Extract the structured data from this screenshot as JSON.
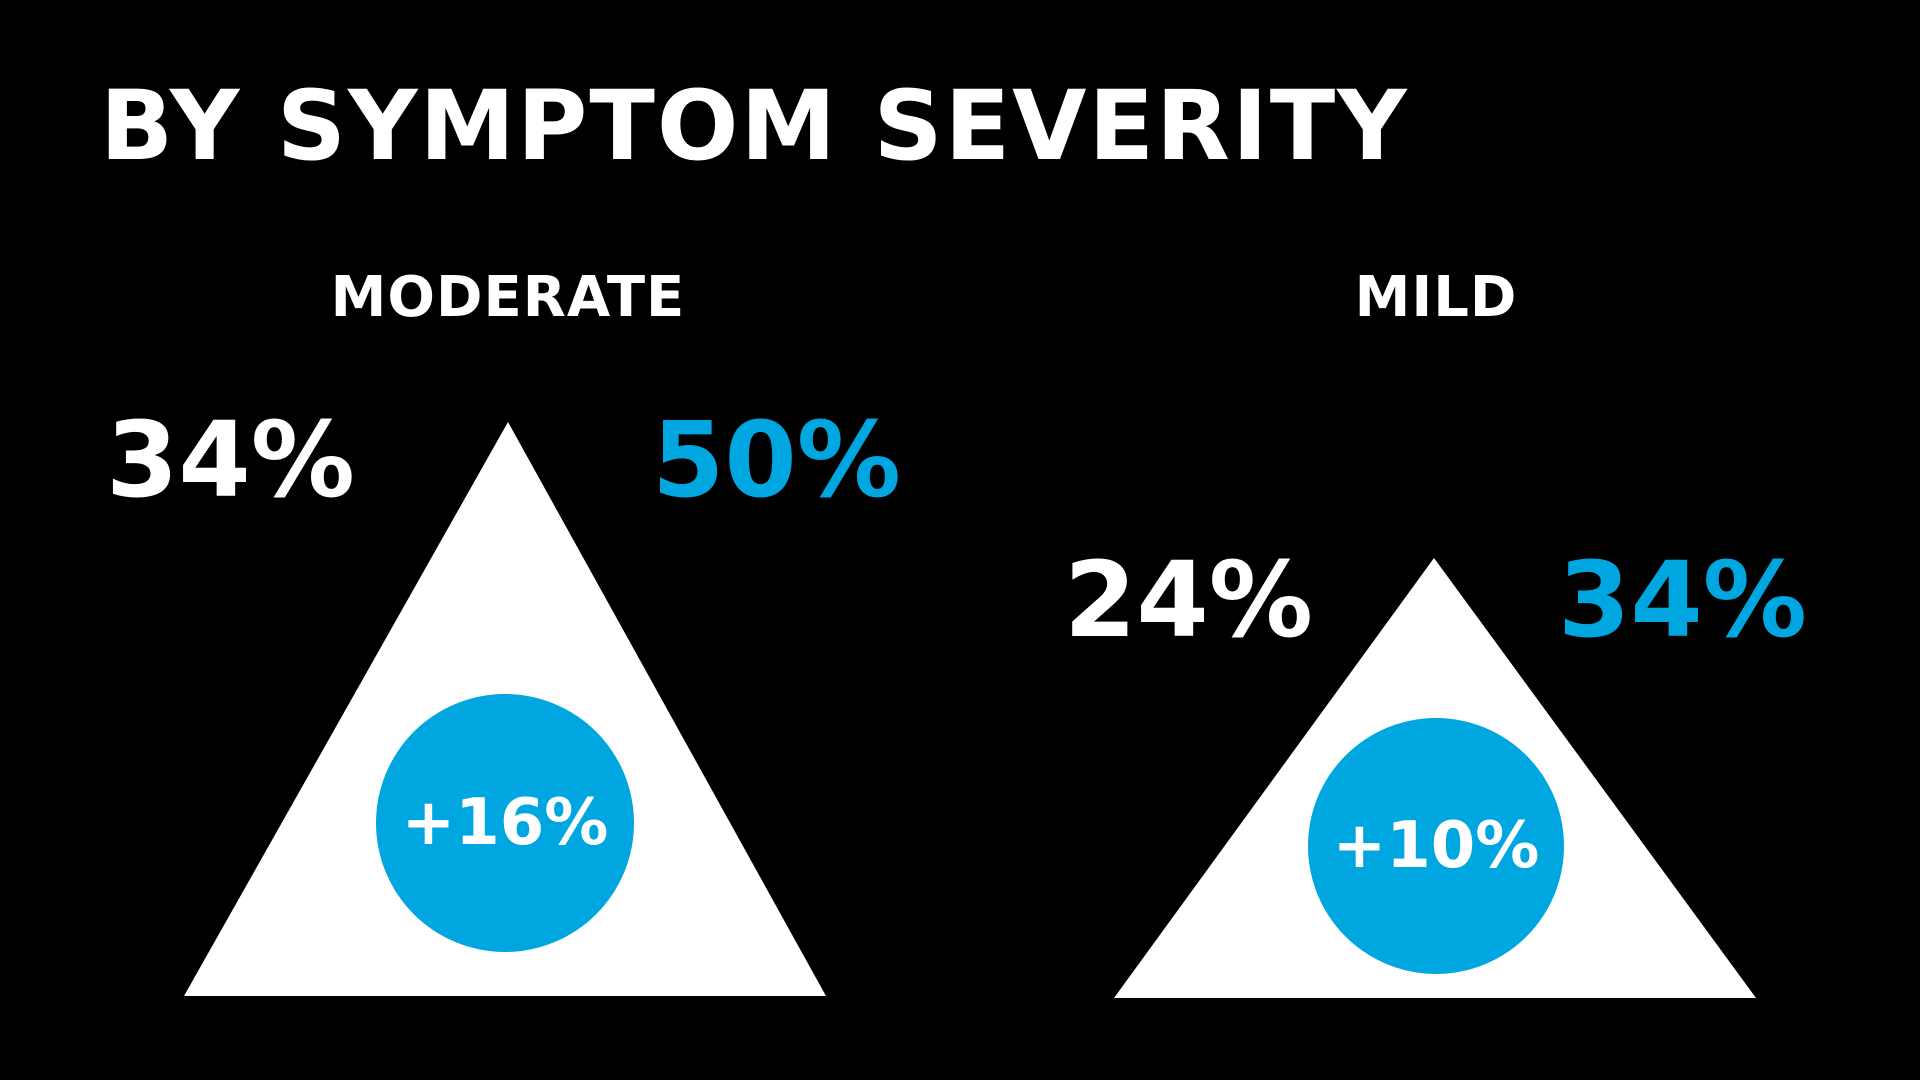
{
  "title": "BY SYMPTOM SEVERITY",
  "colors": {
    "background": "#000000",
    "primary": "#ffffff",
    "accent": "#00a6e0"
  },
  "groups": [
    {
      "label": "MODERATE",
      "before": "34%",
      "after": "50%",
      "change": "+16%"
    },
    {
      "label": "MILD",
      "before": "24%",
      "after": "34%",
      "change": "+10%"
    }
  ]
}
